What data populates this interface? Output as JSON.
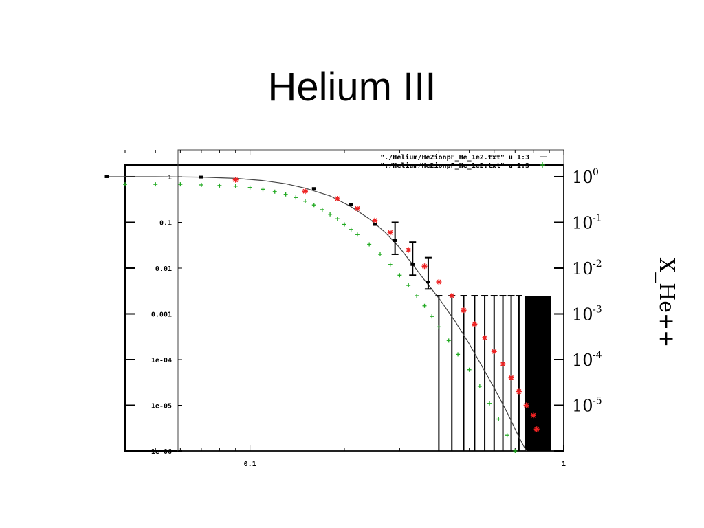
{
  "slide": {
    "title": "Helium III"
  },
  "chart_data": {
    "type": "scatter",
    "x_scale": "log",
    "y_scale": "log",
    "xlim": [
      0.04,
      1
    ],
    "ylim": [
      1e-06,
      1.8
    ],
    "x_tick_labels": [
      "0.1",
      "1"
    ],
    "y_tick_labels_left": [
      "1",
      "0.1",
      "0.01",
      "0.001",
      "1e-04",
      "1e-05",
      "1e-06"
    ],
    "y_tick_labels_right": [
      {
        "base": "10",
        "exp": "0"
      },
      {
        "base": "10",
        "exp": "-1"
      },
      {
        "base": "10",
        "exp": "-2"
      },
      {
        "base": "10",
        "exp": "-3"
      },
      {
        "base": "10",
        "exp": "-4"
      },
      {
        "base": "10",
        "exp": "-5"
      }
    ],
    "right_axis_label": "X_He++",
    "legend": [
      "\"./Helium/He2ionpF_He_1e2.txt\" u 1:3",
      "\"./Helium/He2ionpF_He_1e2.txt\" u 1:3"
    ],
    "series": [
      {
        "color": "#444444",
        "style": "line",
        "points": [
          [
            0.035,
            1.0
          ],
          [
            0.05,
            1.0
          ],
          [
            0.07,
            0.98
          ],
          [
            0.09,
            0.92
          ],
          [
            0.11,
            0.82
          ],
          [
            0.13,
            0.7
          ],
          [
            0.15,
            0.56
          ],
          [
            0.18,
            0.38
          ],
          [
            0.21,
            0.22
          ],
          [
            0.24,
            0.12
          ],
          [
            0.27,
            0.06
          ],
          [
            0.3,
            0.028
          ],
          [
            0.33,
            0.012
          ],
          [
            0.36,
            0.0055
          ],
          [
            0.4,
            0.0022
          ],
          [
            0.45,
            0.0007
          ],
          [
            0.5,
            0.00022
          ],
          [
            0.55,
            7e-05
          ],
          [
            0.6,
            2.4e-05
          ],
          [
            0.66,
            7e-06
          ],
          [
            0.72,
            2e-06
          ],
          [
            0.76,
            1e-06
          ]
        ]
      },
      {
        "color": "#000000",
        "style": "errorbar",
        "points": [
          [
            0.035,
            1.0
          ],
          [
            0.07,
            0.98
          ],
          [
            0.16,
            0.55
          ],
          [
            0.21,
            0.25
          ],
          [
            0.25,
            0.09
          ],
          [
            0.29,
            0.04
          ],
          [
            0.33,
            0.012
          ],
          [
            0.37,
            0.005
          ]
        ],
        "errors_up": [
          0,
          0,
          0,
          0,
          0,
          0.06,
          0.025,
          0.012
        ],
        "errors_down": [
          0,
          0,
          0,
          0,
          0,
          0.02,
          0.005,
          0.0015
        ]
      },
      {
        "color": "#ee2222",
        "style": "star",
        "points": [
          [
            0.09,
            0.85
          ],
          [
            0.15,
            0.48
          ],
          [
            0.19,
            0.33
          ],
          [
            0.22,
            0.2
          ],
          [
            0.25,
            0.11
          ],
          [
            0.28,
            0.06
          ],
          [
            0.32,
            0.025
          ],
          [
            0.36,
            0.011
          ],
          [
            0.4,
            0.005
          ],
          [
            0.44,
            0.0025
          ],
          [
            0.48,
            0.0012
          ],
          [
            0.52,
            0.0006
          ],
          [
            0.56,
            0.0003
          ],
          [
            0.6,
            0.00015
          ],
          [
            0.64,
            8e-05
          ],
          [
            0.68,
            4e-05
          ],
          [
            0.72,
            2e-05
          ],
          [
            0.76,
            1e-05
          ],
          [
            0.8,
            6e-06
          ],
          [
            0.82,
            3e-06
          ]
        ]
      },
      {
        "color": "#22aa22",
        "style": "plus",
        "points": [
          [
            0.04,
            0.68
          ],
          [
            0.05,
            0.68
          ],
          [
            0.06,
            0.68
          ],
          [
            0.07,
            0.66
          ],
          [
            0.08,
            0.64
          ],
          [
            0.09,
            0.62
          ],
          [
            0.1,
            0.58
          ],
          [
            0.11,
            0.53
          ],
          [
            0.12,
            0.47
          ],
          [
            0.13,
            0.41
          ],
          [
            0.14,
            0.35
          ],
          [
            0.15,
            0.29
          ],
          [
            0.16,
            0.24
          ],
          [
            0.17,
            0.19
          ],
          [
            0.18,
            0.15
          ],
          [
            0.19,
            0.12
          ],
          [
            0.2,
            0.09
          ],
          [
            0.21,
            0.07
          ],
          [
            0.22,
            0.054
          ],
          [
            0.24,
            0.033
          ],
          [
            0.26,
            0.02
          ],
          [
            0.28,
            0.012
          ],
          [
            0.3,
            0.007
          ],
          [
            0.32,
            0.0042
          ],
          [
            0.34,
            0.0025
          ],
          [
            0.36,
            0.0015
          ],
          [
            0.38,
            0.00088
          ],
          [
            0.4,
            0.00052
          ],
          [
            0.43,
            0.00026
          ],
          [
            0.46,
            0.00013
          ],
          [
            0.5,
            6e-05
          ],
          [
            0.54,
            2.6e-05
          ],
          [
            0.58,
            1.1e-05
          ],
          [
            0.62,
            5e-06
          ],
          [
            0.66,
            2.2e-06
          ],
          [
            0.7,
            1e-06
          ]
        ]
      }
    ],
    "upper_limit_bars": {
      "color": "#000000",
      "cap_value": 0.0025,
      "x": [
        0.4,
        0.44,
        0.48,
        0.52,
        0.56,
        0.6,
        0.64,
        0.68,
        0.72
      ]
    }
  }
}
